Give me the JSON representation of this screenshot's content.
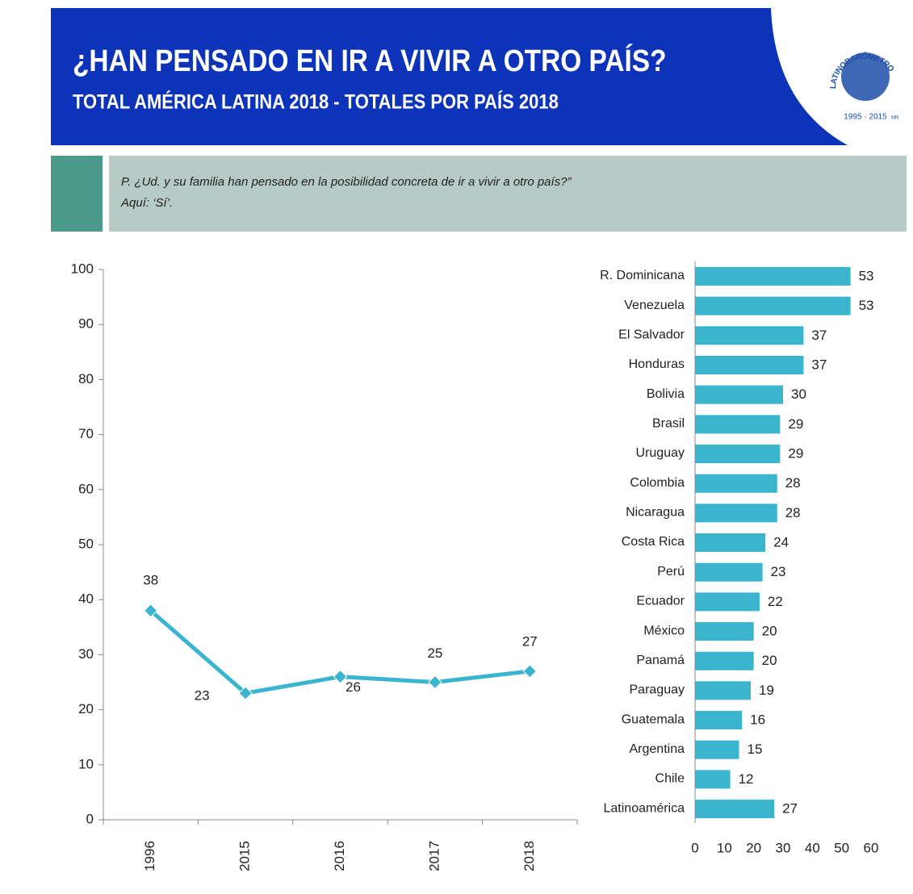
{
  "header": {
    "title": "¿HAN PENSADO EN IR A VIVIR A OTRO PAÍS?",
    "subtitle": "TOTAL AMÉRICA LATINA 2018 - TOTALES POR PAÍS 2018"
  },
  "logo": {
    "name": "LATINOBARÓMETRO",
    "years": "1995 · 2015",
    "mark": "MR"
  },
  "question": {
    "text": "P. ¿Ud. y su familia han pensado en la posibilidad concreta de ir a vivir a otro país?”",
    "note": "Aquí: ‘Sí’."
  },
  "chart_data": [
    {
      "type": "line",
      "categories": [
        "1996",
        "2015",
        "2016",
        "2017",
        "2018"
      ],
      "values": [
        38,
        23,
        26,
        25,
        27
      ],
      "color": "#3ab4cf",
      "ylim": [
        0,
        100
      ],
      "yticks": [
        0,
        10,
        20,
        30,
        40,
        50,
        60,
        70,
        80,
        90,
        100
      ],
      "grid": false
    },
    {
      "type": "bar",
      "orientation": "horizontal",
      "color": "#3ab4cf",
      "categories": [
        "R. Dominicana",
        "Venezuela",
        "El Salvador",
        "Honduras",
        "Bolivia",
        "Brasil",
        "Uruguay",
        "Colombia",
        "Nicaragua",
        "Costa Rica",
        "Perú",
        "Ecuador",
        "México",
        "Panamá",
        "Paraguay",
        "Guatemala",
        "Argentina",
        "Chile",
        "Latinoamérica"
      ],
      "values": [
        53,
        53,
        37,
        37,
        30,
        29,
        29,
        28,
        28,
        24,
        23,
        22,
        20,
        20,
        19,
        16,
        15,
        12,
        27
      ],
      "xlim": [
        0,
        60
      ],
      "xticks": [
        0,
        10,
        20,
        30,
        40,
        50,
        60
      ],
      "grid": false
    }
  ]
}
